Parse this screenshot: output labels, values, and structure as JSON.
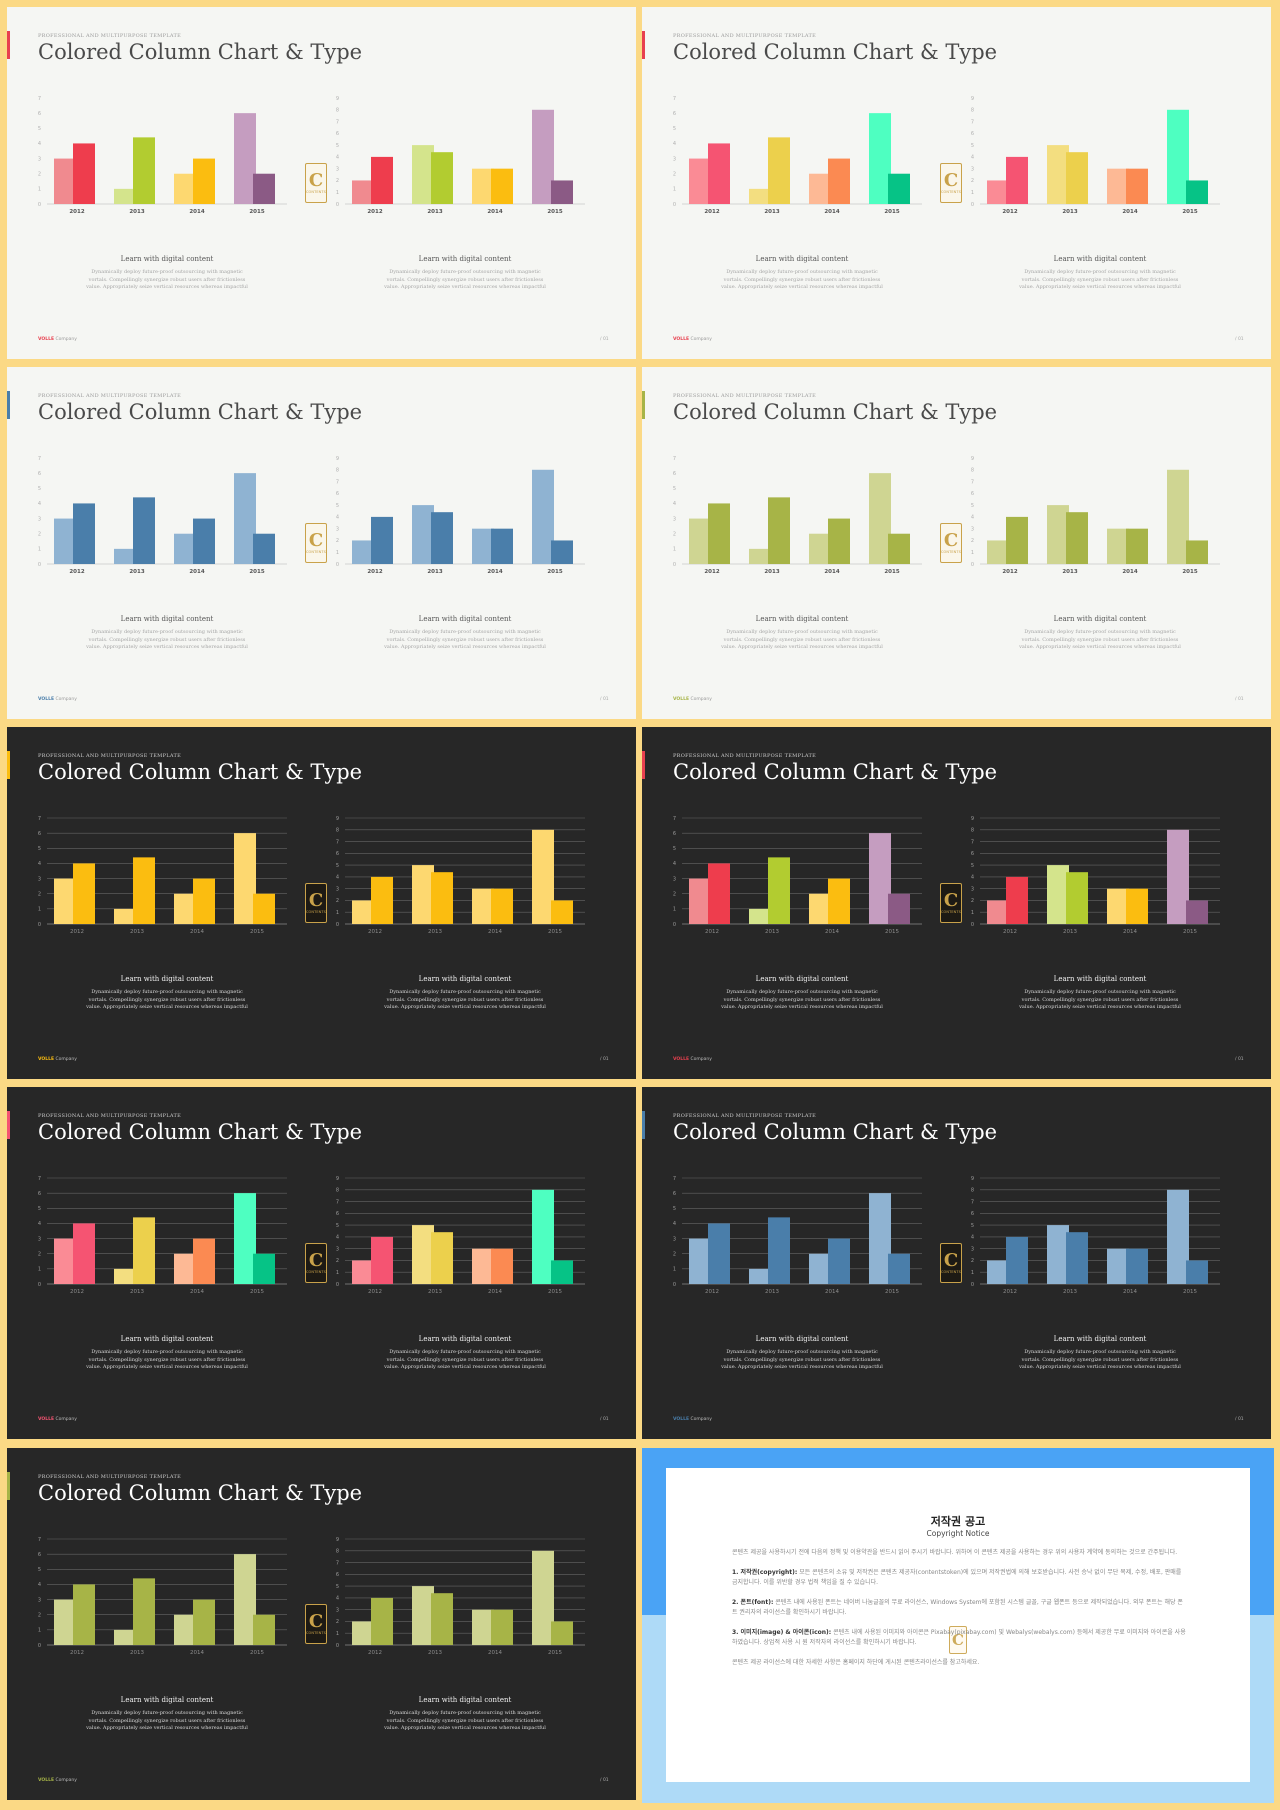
{
  "slide_text": {
    "kicker": "PROFESSIONAL AND MULTIPURPOSE  TEMPLATE",
    "title": "Colored Column Chart & Type",
    "caption_title": "Learn with digital content",
    "caption_body": "Dynamically deploy future-proof outsourcing with magnetic vortals. Compellingly synergize robust users after frictionless value. Appropriately seize vertical resources whereas impactful",
    "brand": "VOLLE",
    "company": "Company",
    "page": "/ 01",
    "badge_letter": "C",
    "badge_text": "CONTENTS"
  },
  "slides": [
    {
      "theme": "light",
      "accent": "#e8404f",
      "palettes": [
        [
          "#f08a8f",
          "#ee3d4d"
        ],
        [
          "#d4e48c",
          "#b2cc30"
        ],
        [
          "#fdd870",
          "#fbbd10"
        ],
        [
          "#c59dc0",
          "#8b5a85"
        ]
      ]
    },
    {
      "theme": "light",
      "accent": "#e8404f",
      "palettes": [
        [
          "#fa8b95",
          "#f55472"
        ],
        [
          "#f3de80",
          "#ecd04c"
        ],
        [
          "#fdb995",
          "#fb8a52"
        ],
        [
          "#4effc1",
          "#06c386"
        ]
      ]
    },
    {
      "theme": "light",
      "accent": "#4a7eaa",
      "palettes": [
        [
          "#8fb3d2",
          "#4a7eaa"
        ],
        [
          "#8fb3d2",
          "#4a7eaa"
        ],
        [
          "#8fb3d2",
          "#4a7eaa"
        ],
        [
          "#8fb3d2",
          "#4a7eaa"
        ]
      ]
    },
    {
      "theme": "light",
      "accent": "#a7b447",
      "palettes": [
        [
          "#cfd592",
          "#a7b447"
        ],
        [
          "#cfd592",
          "#a7b447"
        ],
        [
          "#cfd592",
          "#a7b447"
        ],
        [
          "#cfd592",
          "#a7b447"
        ]
      ]
    },
    {
      "theme": "dark",
      "accent": "#fbbd10",
      "palettes": [
        [
          "#fdd870",
          "#fbbd10"
        ],
        [
          "#fdd870",
          "#fbbd10"
        ],
        [
          "#fdd870",
          "#fbbd10"
        ],
        [
          "#fdd870",
          "#fbbd10"
        ]
      ]
    },
    {
      "theme": "dark",
      "accent": "#e8404f",
      "palettes": [
        [
          "#f08a8f",
          "#ee3d4d"
        ],
        [
          "#d4e48c",
          "#b2cc30"
        ],
        [
          "#fdd870",
          "#fbbd10"
        ],
        [
          "#c59dc0",
          "#8b5a85"
        ]
      ]
    },
    {
      "theme": "dark",
      "accent": "#f55472",
      "palettes": [
        [
          "#fa8b95",
          "#f55472"
        ],
        [
          "#f3de80",
          "#ecd04c"
        ],
        [
          "#fdb995",
          "#fb8a52"
        ],
        [
          "#4effc1",
          "#06c386"
        ]
      ]
    },
    {
      "theme": "dark",
      "accent": "#4a7eaa",
      "palettes": [
        [
          "#8fb3d2",
          "#4a7eaa"
        ],
        [
          "#8fb3d2",
          "#4a7eaa"
        ],
        [
          "#8fb3d2",
          "#4a7eaa"
        ],
        [
          "#8fb3d2",
          "#4a7eaa"
        ]
      ]
    },
    {
      "theme": "dark",
      "accent": "#a7b447",
      "palettes": [
        [
          "#cfd592",
          "#a7b447"
        ],
        [
          "#cfd592",
          "#a7b447"
        ],
        [
          "#cfd592",
          "#a7b447"
        ],
        [
          "#cfd592",
          "#a7b447"
        ]
      ]
    }
  ],
  "chart_data": [
    {
      "type": "bar",
      "categories": [
        "2012",
        "2013",
        "2014",
        "2015"
      ],
      "series": [
        {
          "values": [
            3,
            1,
            2,
            6
          ]
        },
        {
          "values": [
            4,
            4.4,
            3,
            2
          ]
        }
      ],
      "ylim": [
        0,
        7
      ],
      "yticks": [
        "0",
        "1",
        "2",
        "3",
        "4",
        "5",
        "6",
        "7"
      ],
      "grid_dark": true
    },
    {
      "type": "bar",
      "categories": [
        "2012",
        "2013",
        "2014",
        "2015"
      ],
      "series": [
        {
          "values": [
            2,
            5,
            3,
            8
          ]
        },
        {
          "values": [
            4,
            4.4,
            3,
            2
          ]
        }
      ],
      "ylim": [
        0,
        9
      ],
      "yticks": [
        "0",
        "1",
        "2",
        "3",
        "4",
        "5",
        "6",
        "7",
        "8",
        "9"
      ],
      "grid_dark": true
    }
  ],
  "copyright": {
    "title": "저작권 공고",
    "subtitle": "Copyright Notice",
    "intro": "콘텐츠 제공을 사용하시기 전에 다음의 정책 및 이용약관을 반드시 읽어 주시기 바랍니다. 위하여 이 콘텐츠 제공을 사용하는 경우 위의 사용자 계약에 동의하는 것으로 간주됩니다.",
    "p1_label": "1. 저작권(copyright):",
    "p1": " 모든 콘텐츠의 소유 및 저작권은 콘텐츠 제공자(contentstoken)에 있으며 저작권법에 의해 보호받습니다. 사전 승낙 없이 무단 복제, 수정, 배포, 판매를 금지합니다. 이를 위반할 경우 법적 책임을 질 수 있습니다.",
    "p2_label": "2. 폰트(font):",
    "p2": " 콘텐츠 내에 사용된 폰트는 네이버 나눔글꼴의 무료 라이선스, Windows System에 포함된 시스템 글꼴, 구글 웹폰트 등으로 제작되었습니다. 외부 폰트는 해당 폰트 권리자의 라이선스를 확인하시기 바랍니다.",
    "p3_label": "3. 이미지(image) & 아이콘(icon):",
    "p3": " 콘텐츠 내에 사용된 이미지와 아이콘은 Pixabay(pixabay.com) 및 Webalys(webalys.com) 등에서 제공한 무료 이미지와 아이콘을 사용하였습니다. 상업적 사용 시 원 저작자의 라이선스를 확인하시기 바랍니다.",
    "outro": "콘텐츠 제공 라이선스에 대한 자세한 사항은 홈페이지 하단에 게시된 콘텐츠라이선스를 참고하세요.",
    "logo_letter": "C"
  }
}
